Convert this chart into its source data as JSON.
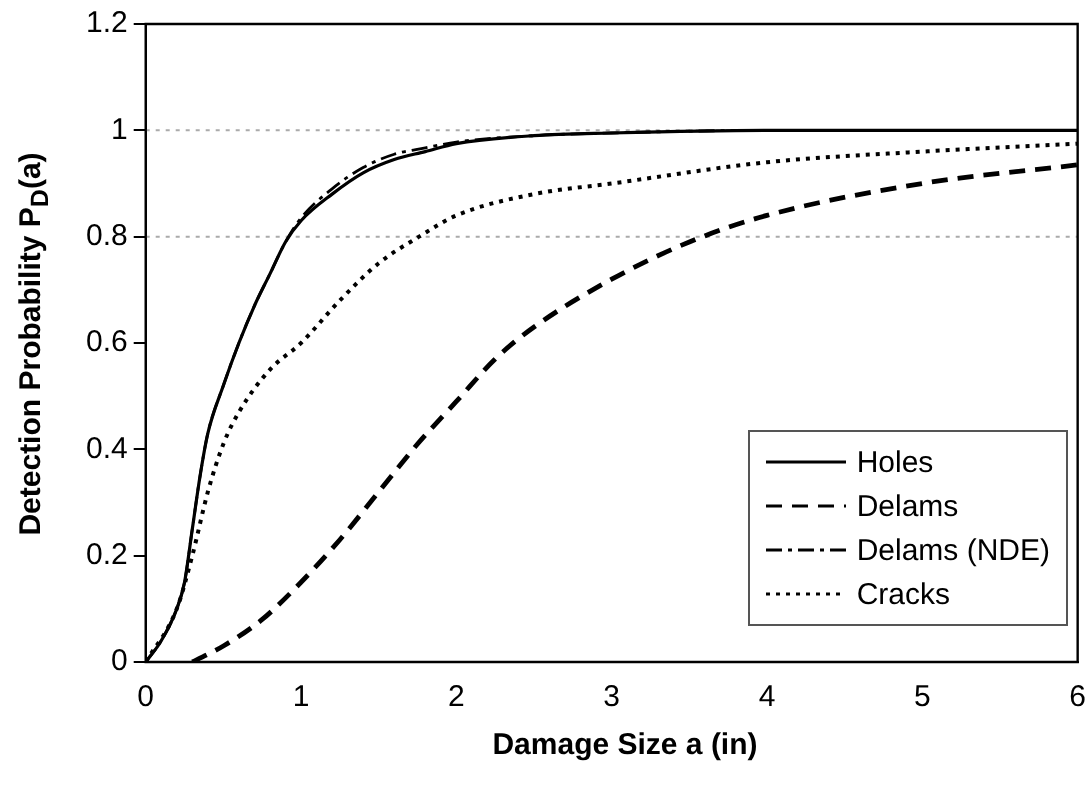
{
  "chart_data": {
    "type": "line",
    "xlabel": "Damage Size a (in)",
    "ylabel": "Detection Probability P$_{D}$(a)",
    "xlim": [
      0,
      6
    ],
    "xticks": [
      0,
      1,
      2,
      3,
      4,
      5,
      6
    ],
    "ylim": [
      0,
      1.2
    ],
    "yticks": [
      0,
      0.2,
      0.4,
      0.6,
      0.8,
      1,
      1.2
    ],
    "legend": "bottom right",
    "marker": "none",
    "grid": false,
    "ref_lines": [
      {
        "axis": "y",
        "value": 0.8,
        "color": "#aaaaaa",
        "line_style": "dotted"
      },
      {
        "axis": "y",
        "value": 1,
        "color": "#aaaaaa",
        "line_style": "dotted"
      }
    ],
    "series": [
      {
        "name": "Holes",
        "color": "#000000",
        "line_style": "solid",
        "x": [
          0,
          0.1,
          0.2,
          0.25,
          0.3,
          0.35,
          0.4,
          0.5,
          0.6,
          0.7,
          0.8,
          0.9,
          1,
          1.2,
          1.4,
          1.6,
          1.8,
          2,
          2.5,
          3,
          4,
          6
        ],
        "values": [
          0,
          0.04,
          0.1,
          0.15,
          0.25,
          0.35,
          0.43,
          0.52,
          0.6,
          0.67,
          0.73,
          0.79,
          0.83,
          0.88,
          0.92,
          0.945,
          0.96,
          0.975,
          0.99,
          0.995,
          1,
          1
        ]
      },
      {
        "name": "Delams",
        "color": "#000000",
        "line_style": "dashed",
        "x": [
          0.3,
          0.5,
          0.75,
          1,
          1.25,
          1.5,
          1.75,
          2,
          2.25,
          2.5,
          3,
          3.5,
          4,
          5,
          6
        ],
        "values": [
          0,
          0.03,
          0.08,
          0.15,
          0.23,
          0.32,
          0.41,
          0.49,
          0.57,
          0.63,
          0.72,
          0.79,
          0.84,
          0.9,
          0.935
        ]
      },
      {
        "name": "Delams (NDE)",
        "color": "#000000",
        "line_style": "dashdot",
        "x": [
          0,
          0.1,
          0.2,
          0.25,
          0.3,
          0.35,
          0.4,
          0.5,
          0.6,
          0.7,
          0.8,
          0.9,
          1,
          1.2,
          1.4,
          1.6,
          1.8,
          2,
          2.5,
          3,
          4,
          6
        ],
        "values": [
          0,
          0.04,
          0.1,
          0.15,
          0.25,
          0.35,
          0.43,
          0.52,
          0.6,
          0.67,
          0.73,
          0.79,
          0.835,
          0.89,
          0.93,
          0.955,
          0.967,
          0.978,
          0.99,
          0.995,
          1,
          1
        ]
      },
      {
        "name": "Cracks",
        "color": "#000000",
        "line_style": "dotted",
        "x": [
          0,
          0.2,
          0.3,
          0.4,
          0.5,
          0.6,
          0.8,
          1,
          1.25,
          1.5,
          1.76,
          2,
          2.5,
          3,
          4,
          5,
          6
        ],
        "values": [
          0,
          0.1,
          0.2,
          0.32,
          0.41,
          0.47,
          0.55,
          0.6,
          0.68,
          0.75,
          0.8,
          0.84,
          0.88,
          0.9,
          0.94,
          0.96,
          0.975
        ]
      }
    ]
  }
}
